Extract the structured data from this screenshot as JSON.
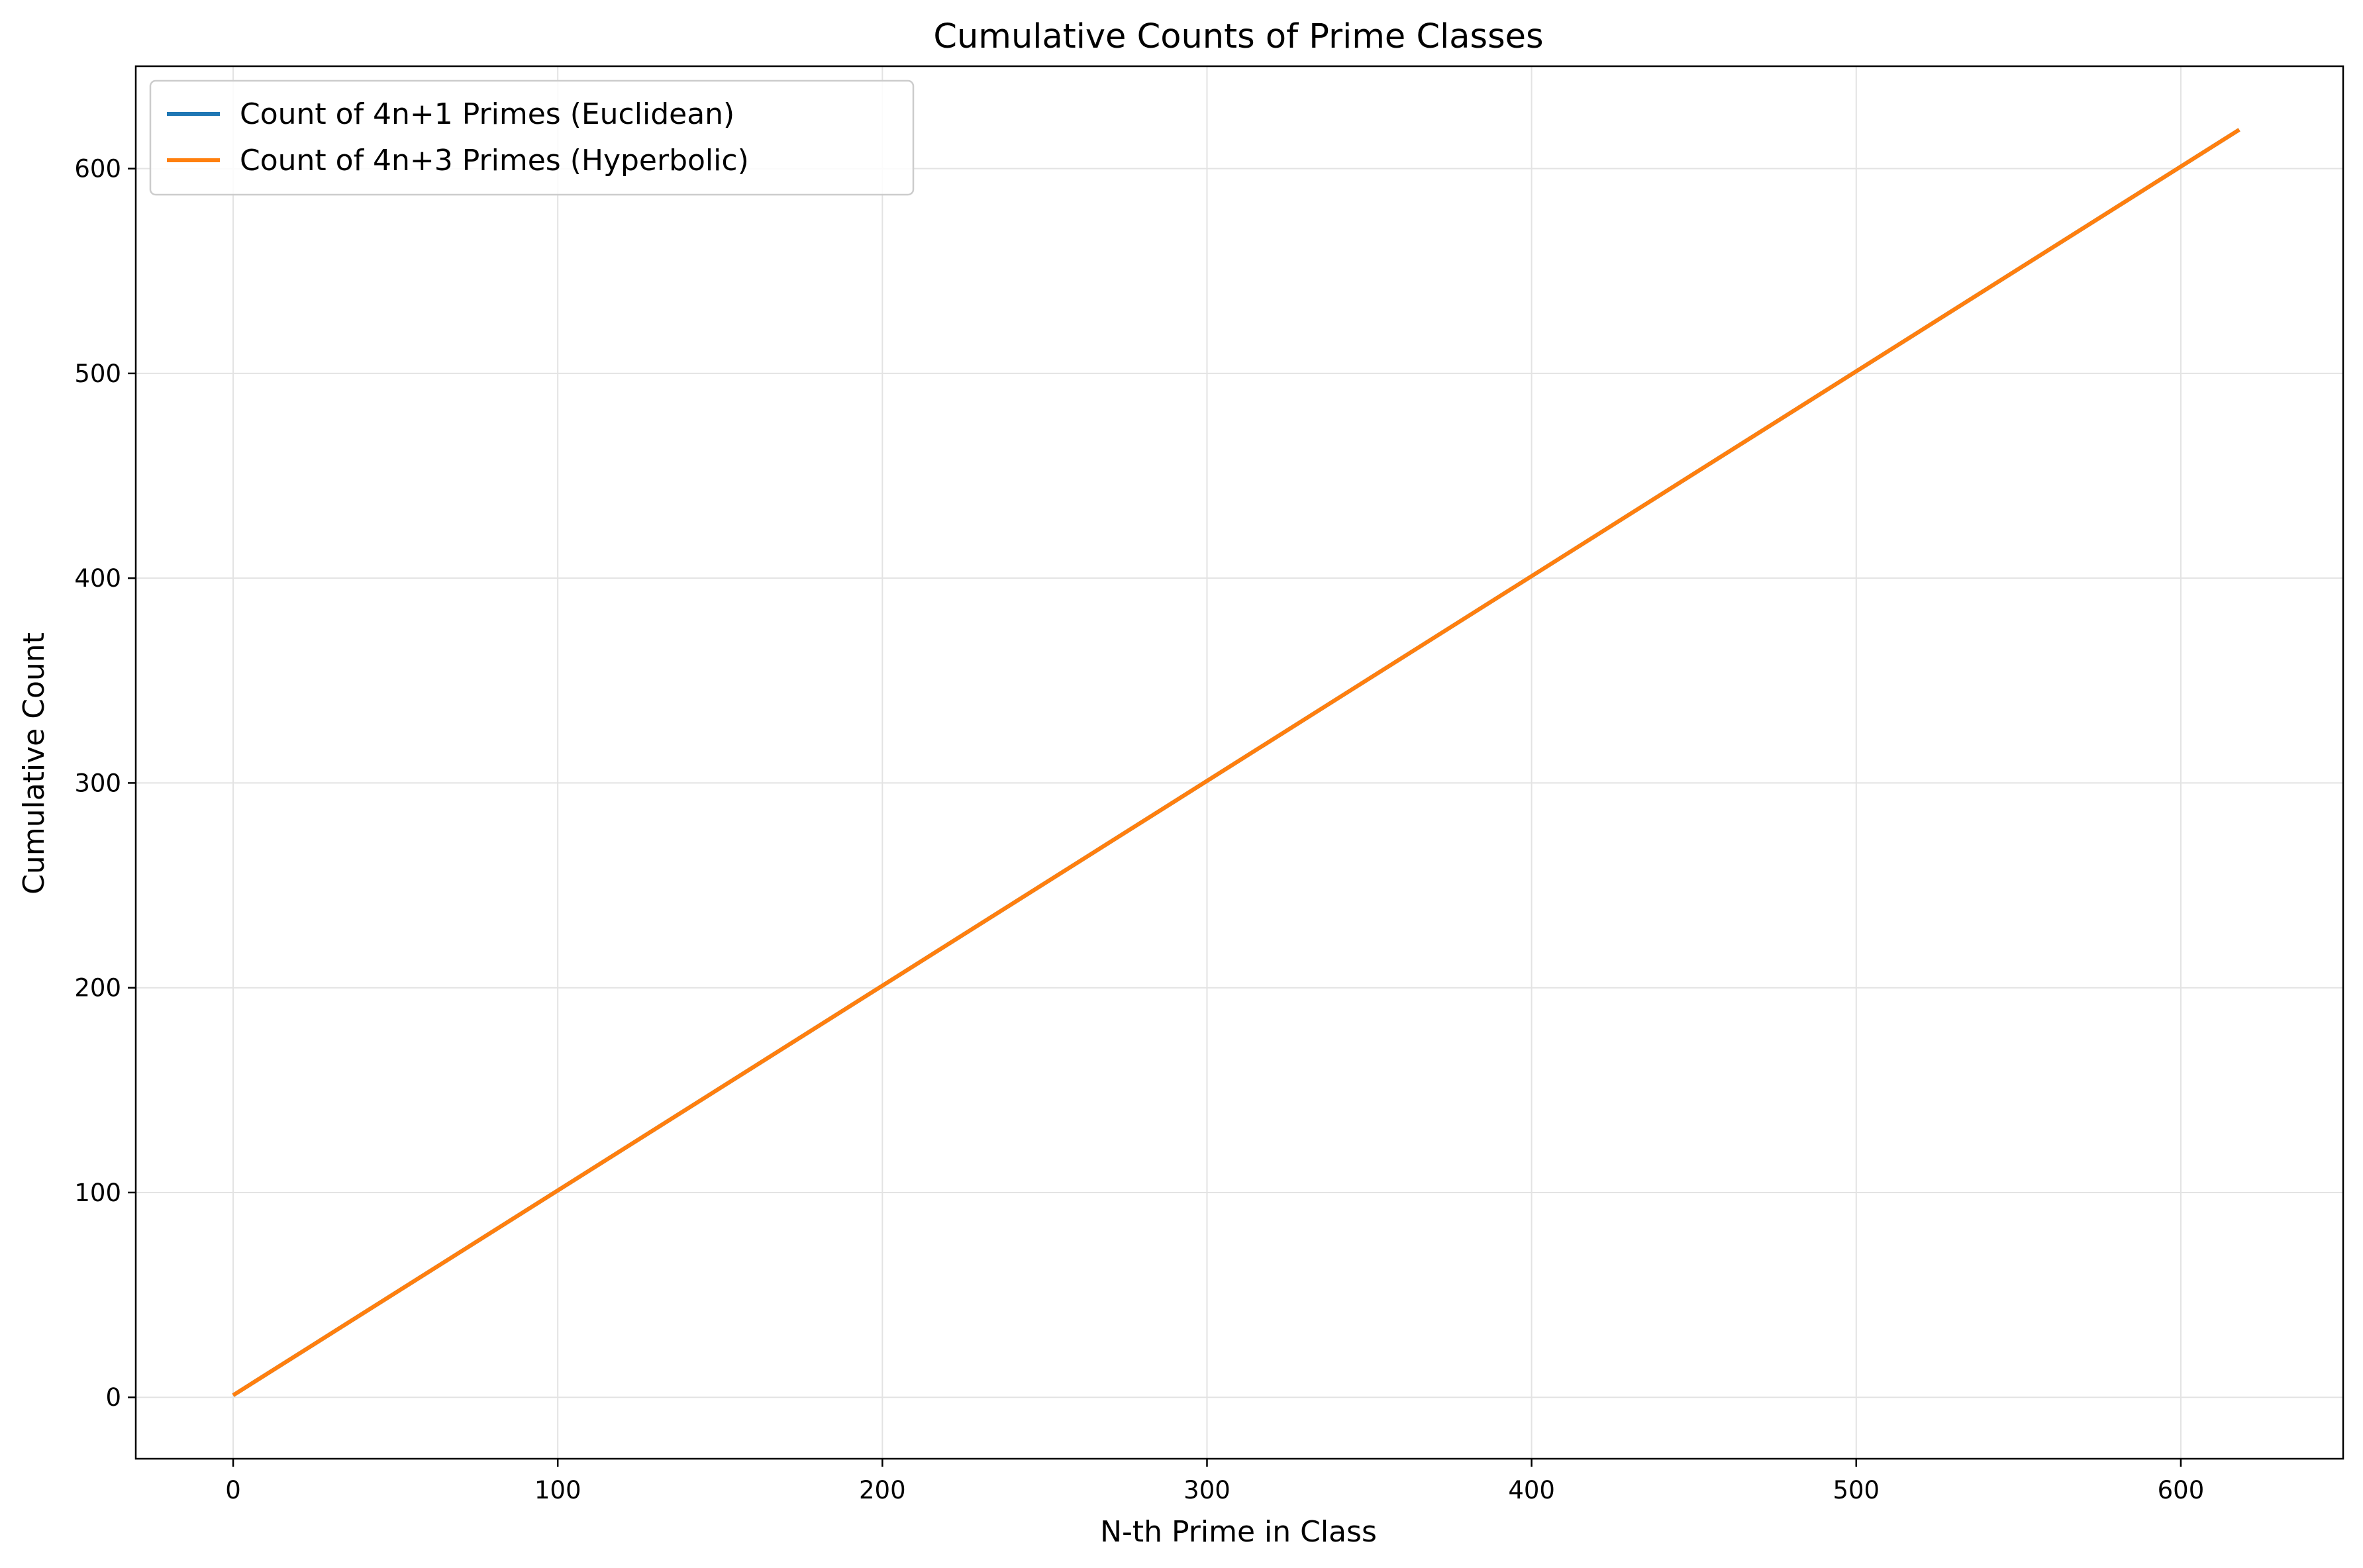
{
  "chart_data": {
    "type": "line",
    "title": "Cumulative Counts of Prime Classes",
    "xlabel": "N-th Prime in Class",
    "ylabel": "Cumulative Count",
    "xlim": [
      -30,
      650
    ],
    "ylim": [
      -30,
      650
    ],
    "xticks": [
      0,
      100,
      200,
      300,
      400,
      500,
      600
    ],
    "yticks": [
      0,
      100,
      200,
      300,
      400,
      500,
      600
    ],
    "grid": true,
    "legend_position": "top-left",
    "series": [
      {
        "name": "Count of 4n+1 Primes (Euclidean)",
        "color": "#1f77b4",
        "x": [
          0,
          618
        ],
        "y": [
          1,
          619
        ]
      },
      {
        "name": "Count of 4n+3 Primes (Hyperbolic)",
        "color": "#ff7f0e",
        "x": [
          0,
          618
        ],
        "y": [
          1,
          619
        ]
      }
    ]
  }
}
